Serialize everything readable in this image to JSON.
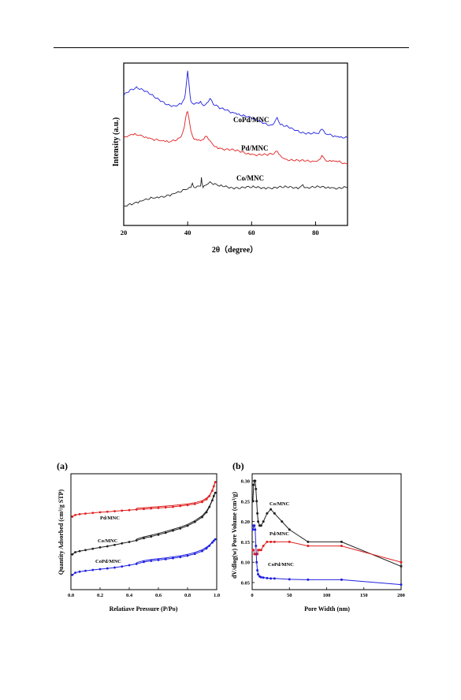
{
  "chart_data": [
    {
      "type": "line",
      "xlabel": "2θ（degree）",
      "ylabel": "Intensity (a.u.)",
      "xlim": [
        20,
        90
      ],
      "xticks": [
        20,
        40,
        60,
        80
      ],
      "series": [
        {
          "name": "CoPd/MNC",
          "color": "#1f1fe0",
          "x": [
            20,
            22,
            24,
            26,
            28,
            30,
            32,
            34,
            36,
            38,
            39,
            39.5,
            40,
            40.5,
            41,
            42,
            43,
            44,
            45,
            46,
            47,
            48,
            50,
            52,
            55,
            58,
            60,
            63,
            66,
            67,
            68,
            69,
            70,
            73,
            76,
            79,
            81,
            82,
            83,
            85,
            87,
            90
          ],
          "y": [
            0.76,
            0.8,
            0.82,
            0.8,
            0.77,
            0.74,
            0.72,
            0.7,
            0.69,
            0.7,
            0.74,
            0.82,
            0.93,
            0.82,
            0.72,
            0.7,
            0.71,
            0.72,
            0.69,
            0.71,
            0.74,
            0.7,
            0.67,
            0.66,
            0.64,
            0.62,
            0.6,
            0.58,
            0.56,
            0.57,
            0.61,
            0.56,
            0.55,
            0.53,
            0.51,
            0.5,
            0.5,
            0.53,
            0.5,
            0.49,
            0.48,
            0.47
          ]
        },
        {
          "name": "Pd/MNC",
          "color": "#e02020",
          "x": [
            20,
            22,
            24,
            26,
            28,
            30,
            32,
            34,
            36,
            38,
            39,
            39.5,
            40,
            40.5,
            41,
            42,
            44,
            45,
            46,
            47,
            48,
            50,
            55,
            60,
            65,
            67,
            68,
            69,
            70,
            75,
            80,
            81,
            82,
            83,
            84,
            86,
            88,
            90
          ],
          "y": [
            0.47,
            0.49,
            0.49,
            0.48,
            0.47,
            0.46,
            0.45,
            0.44,
            0.45,
            0.48,
            0.55,
            0.62,
            0.65,
            0.59,
            0.52,
            0.46,
            0.45,
            0.46,
            0.48,
            0.45,
            0.42,
            0.4,
            0.38,
            0.36,
            0.35,
            0.36,
            0.38,
            0.35,
            0.33,
            0.31,
            0.31,
            0.32,
            0.35,
            0.32,
            0.31,
            0.31,
            0.3,
            0.29
          ]
        },
        {
          "name": "Co/MNC",
          "color": "#202020",
          "x": [
            20,
            22,
            24,
            26,
            28,
            30,
            32,
            34,
            36,
            38,
            40,
            41,
            41.5,
            42,
            43,
            44,
            44.3,
            44.7,
            45,
            46,
            47,
            48,
            50,
            55,
            60,
            65,
            70,
            75,
            76,
            77,
            80,
            85,
            90
          ],
          "y": [
            0.0,
            0.02,
            0.03,
            0.04,
            0.05,
            0.06,
            0.07,
            0.08,
            0.09,
            0.1,
            0.12,
            0.13,
            0.16,
            0.13,
            0.14,
            0.14,
            0.2,
            0.14,
            0.14,
            0.15,
            0.17,
            0.15,
            0.14,
            0.13,
            0.13,
            0.13,
            0.13,
            0.13,
            0.15,
            0.13,
            0.13,
            0.13,
            0.13
          ]
        }
      ]
    },
    {
      "type": "line",
      "panel": "(a)",
      "xlabel": "Relatiave Pressure (P/Po)",
      "ylabel": "Quantity Adsorbed (cm³/g STP)",
      "xlim": [
        0.0,
        1.0
      ],
      "xticks": [
        "0.0",
        "0.2",
        "0.4",
        "0.6",
        "0.8",
        "1.0"
      ],
      "series": [
        {
          "name": "Pd/MNC",
          "color": "#e02020",
          "x": [
            0.01,
            0.03,
            0.06,
            0.1,
            0.15,
            0.2,
            0.25,
            0.3,
            0.35,
            0.4,
            0.45,
            0.5,
            0.55,
            0.6,
            0.65,
            0.7,
            0.75,
            0.8,
            0.85,
            0.9,
            0.93,
            0.95,
            0.97,
            0.98,
            0.99
          ],
          "y": [
            6.4,
            6.55,
            6.62,
            6.68,
            6.74,
            6.8,
            6.85,
            6.9,
            6.95,
            7.0,
            7.05,
            7.1,
            7.15,
            7.2,
            7.25,
            7.3,
            7.38,
            7.46,
            7.56,
            7.75,
            8.0,
            8.3,
            8.8,
            9.2,
            9.6
          ]
        },
        {
          "name": "Co/MNC",
          "color": "#202020",
          "x": [
            0.01,
            0.03,
            0.06,
            0.1,
            0.15,
            0.2,
            0.25,
            0.3,
            0.35,
            0.4,
            0.45,
            0.5,
            0.55,
            0.6,
            0.65,
            0.7,
            0.75,
            0.8,
            0.85,
            0.9,
            0.93,
            0.95,
            0.97,
            0.98,
            0.99
          ],
          "y": [
            2.9,
            3.1,
            3.2,
            3.3,
            3.42,
            3.55,
            3.65,
            3.78,
            3.92,
            4.05,
            4.2,
            4.4,
            4.55,
            4.72,
            4.9,
            5.1,
            5.3,
            5.55,
            5.9,
            6.35,
            6.8,
            7.3,
            7.9,
            8.3,
            8.6
          ]
        },
        {
          "name": "CoPd/MNC",
          "color": "#2020e0",
          "x": [
            0.01,
            0.03,
            0.06,
            0.1,
            0.15,
            0.2,
            0.25,
            0.3,
            0.35,
            0.4,
            0.45,
            0.5,
            0.55,
            0.6,
            0.65,
            0.7,
            0.75,
            0.8,
            0.85,
            0.9,
            0.93,
            0.95,
            0.97,
            0.98,
            0.99
          ],
          "y": [
            1.0,
            1.2,
            1.3,
            1.38,
            1.46,
            1.53,
            1.6,
            1.68,
            1.78,
            1.9,
            2.02,
            2.2,
            2.3,
            2.38,
            2.45,
            2.55,
            2.65,
            2.78,
            2.95,
            3.2,
            3.45,
            3.7,
            4.0,
            4.15,
            4.3
          ]
        }
      ]
    },
    {
      "type": "line",
      "panel": "(b)",
      "xlabel": "Pore Width (nm)",
      "ylabel": "dV/dlog(w) Pore Volume (cm³/g)",
      "xlim": [
        0,
        200
      ],
      "ylim": [
        0.05,
        0.3
      ],
      "xticks": [
        "0",
        "50",
        "100",
        "150",
        "200"
      ],
      "yticks": [
        "0.05",
        "0.10",
        "0.15",
        "0.20",
        "0.25",
        "0.30"
      ],
      "series": [
        {
          "name": "Co/MNC",
          "color": "#202020",
          "x": [
            1,
            2,
            3,
            4,
            5,
            6,
            7,
            8,
            10,
            12,
            15,
            20,
            25,
            30,
            40,
            50,
            75,
            120,
            200
          ],
          "y": [
            0.25,
            0.29,
            0.3,
            0.3,
            0.28,
            0.25,
            0.22,
            0.2,
            0.19,
            0.19,
            0.2,
            0.22,
            0.23,
            0.22,
            0.2,
            0.18,
            0.15,
            0.15,
            0.09
          ]
        },
        {
          "name": "Pd/MNC",
          "color": "#e02020",
          "x": [
            1,
            2,
            3,
            4,
            5,
            6,
            7,
            8,
            10,
            12,
            15,
            20,
            25,
            30,
            50,
            75,
            120,
            200
          ],
          "y": [
            0.13,
            0.13,
            0.12,
            0.12,
            0.12,
            0.12,
            0.12,
            0.13,
            0.13,
            0.13,
            0.14,
            0.15,
            0.15,
            0.15,
            0.15,
            0.14,
            0.14,
            0.1
          ]
        },
        {
          "name": "CoPd/MNC",
          "color": "#2020e0",
          "x": [
            1,
            2,
            3,
            4,
            5,
            6,
            7,
            8,
            10,
            12,
            15,
            20,
            25,
            30,
            50,
            75,
            120,
            200
          ],
          "y": [
            0.18,
            0.19,
            0.19,
            0.18,
            0.14,
            0.1,
            0.08,
            0.07,
            0.065,
            0.063,
            0.062,
            0.061,
            0.06,
            0.06,
            0.058,
            0.057,
            0.057,
            0.045
          ]
        }
      ]
    }
  ]
}
